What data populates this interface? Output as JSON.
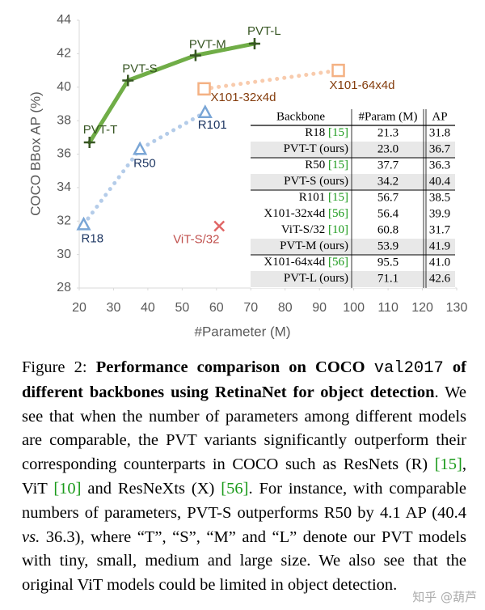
{
  "chart_data": {
    "type": "scatter-line",
    "xlabel": "#Parameter (M)",
    "ylabel": "COCO BBox AP (%)",
    "xlim": [
      20,
      130
    ],
    "xticks": [
      20,
      30,
      40,
      50,
      60,
      70,
      80,
      90,
      100,
      110,
      120,
      130
    ],
    "ylim": [
      28,
      44
    ],
    "yticks": [
      28,
      30,
      32,
      34,
      36,
      38,
      40,
      42,
      44
    ],
    "series": [
      {
        "labels": [
          "PVT-T",
          "PVT-S",
          "PVT-M",
          "PVT-L"
        ],
        "x": [
          23.0,
          34.2,
          53.9,
          71.1
        ],
        "values": [
          36.7,
          40.4,
          41.9,
          42.6
        ],
        "color": "#70ad47",
        "marker_color": "#375623",
        "label_color": "#375623",
        "marker": "plus",
        "line": "solid"
      },
      {
        "labels": [
          "R18",
          "R50",
          "R101"
        ],
        "x": [
          21.3,
          37.7,
          56.7
        ],
        "values": [
          31.8,
          36.3,
          38.5
        ],
        "color": "#b4cce9",
        "marker_color": "#7aa6d6",
        "label_color": "#1f3864",
        "marker": "triangle",
        "line": "dotted"
      },
      {
        "labels": [
          "X101-32x4d",
          "X101-64x4d"
        ],
        "x": [
          56.4,
          95.5
        ],
        "values": [
          39.9,
          41.0
        ],
        "color": "#f8cbad",
        "marker_color": "#f4b183",
        "label_color": "#843c0c",
        "marker": "square",
        "line": "dotted"
      },
      {
        "labels": [
          "ViT-S/32"
        ],
        "x": [
          60.8
        ],
        "values": [
          31.7
        ],
        "color": "#e06666",
        "marker_color": "#e06666",
        "label_color": "#c0504d",
        "marker": "x",
        "line": "none"
      }
    ]
  },
  "table": {
    "columns": [
      "Backbone",
      "#Param (M)",
      "AP"
    ],
    "groups": [
      [
        {
          "backbone": "R18",
          "cite": "[15]",
          "params": "21.3",
          "ap": "31.8"
        },
        {
          "backbone": "PVT-T (ours)",
          "params": "23.0",
          "ap": "36.7",
          "shaded": true
        }
      ],
      [
        {
          "backbone": "R50",
          "cite": "[15]",
          "params": "37.7",
          "ap": "36.3"
        },
        {
          "backbone": "PVT-S (ours)",
          "params": "34.2",
          "ap": "40.4",
          "shaded": true
        }
      ],
      [
        {
          "backbone": "R101",
          "cite": "[15]",
          "params": "56.7",
          "ap": "38.5"
        },
        {
          "backbone": "X101-32x4d",
          "cite": "[56]",
          "params": "56.4",
          "ap": "39.9"
        },
        {
          "backbone": "ViT-S/32",
          "cite": "[10]",
          "params": "60.8",
          "ap": "31.7"
        },
        {
          "backbone": "PVT-M (ours)",
          "params": "53.9",
          "ap": "41.9",
          "shaded": true
        }
      ],
      [
        {
          "backbone": "X101-64x4d",
          "cite": "[56]",
          "params": "95.5",
          "ap": "41.0"
        },
        {
          "backbone": "PVT-L (ours)",
          "params": "71.1",
          "ap": "42.6",
          "shaded": true
        }
      ]
    ]
  },
  "caption": [
    {
      "text": "Figure 2: ",
      "style": "normal"
    },
    {
      "text": "Performance comparison on COCO ",
      "style": "bold"
    },
    {
      "text": "val2017",
      "style": "mono"
    },
    {
      "text": " of different backbones using RetinaNet for object detection",
      "style": "bold"
    },
    {
      "text": ". We see that when the number of parameters among different models are comparable, the PVT variants significantly outperform their corresponding counterparts in COCO such as ResNets (R) ",
      "style": "normal"
    },
    {
      "text": "[15]",
      "style": "cite"
    },
    {
      "text": ", ViT ",
      "style": "normal"
    },
    {
      "text": "[10]",
      "style": "cite"
    },
    {
      "text": " and ResNeXts (X) ",
      "style": "normal"
    },
    {
      "text": "[56]",
      "style": "cite"
    },
    {
      "text": ". For instance, with comparable numbers of parameters, PVT-S outperforms R50 by 4.1 AP (40.4 ",
      "style": "normal"
    },
    {
      "text": "vs.",
      "style": "italic"
    },
    {
      "text": " 36.3), where “T”, “S”, “M” and “L” denote our PVT models with tiny, small, medium and large size. We also see that the original ViT models could be limited in object detection.",
      "style": "normal"
    }
  ],
  "watermark": "知乎 @葫芦"
}
